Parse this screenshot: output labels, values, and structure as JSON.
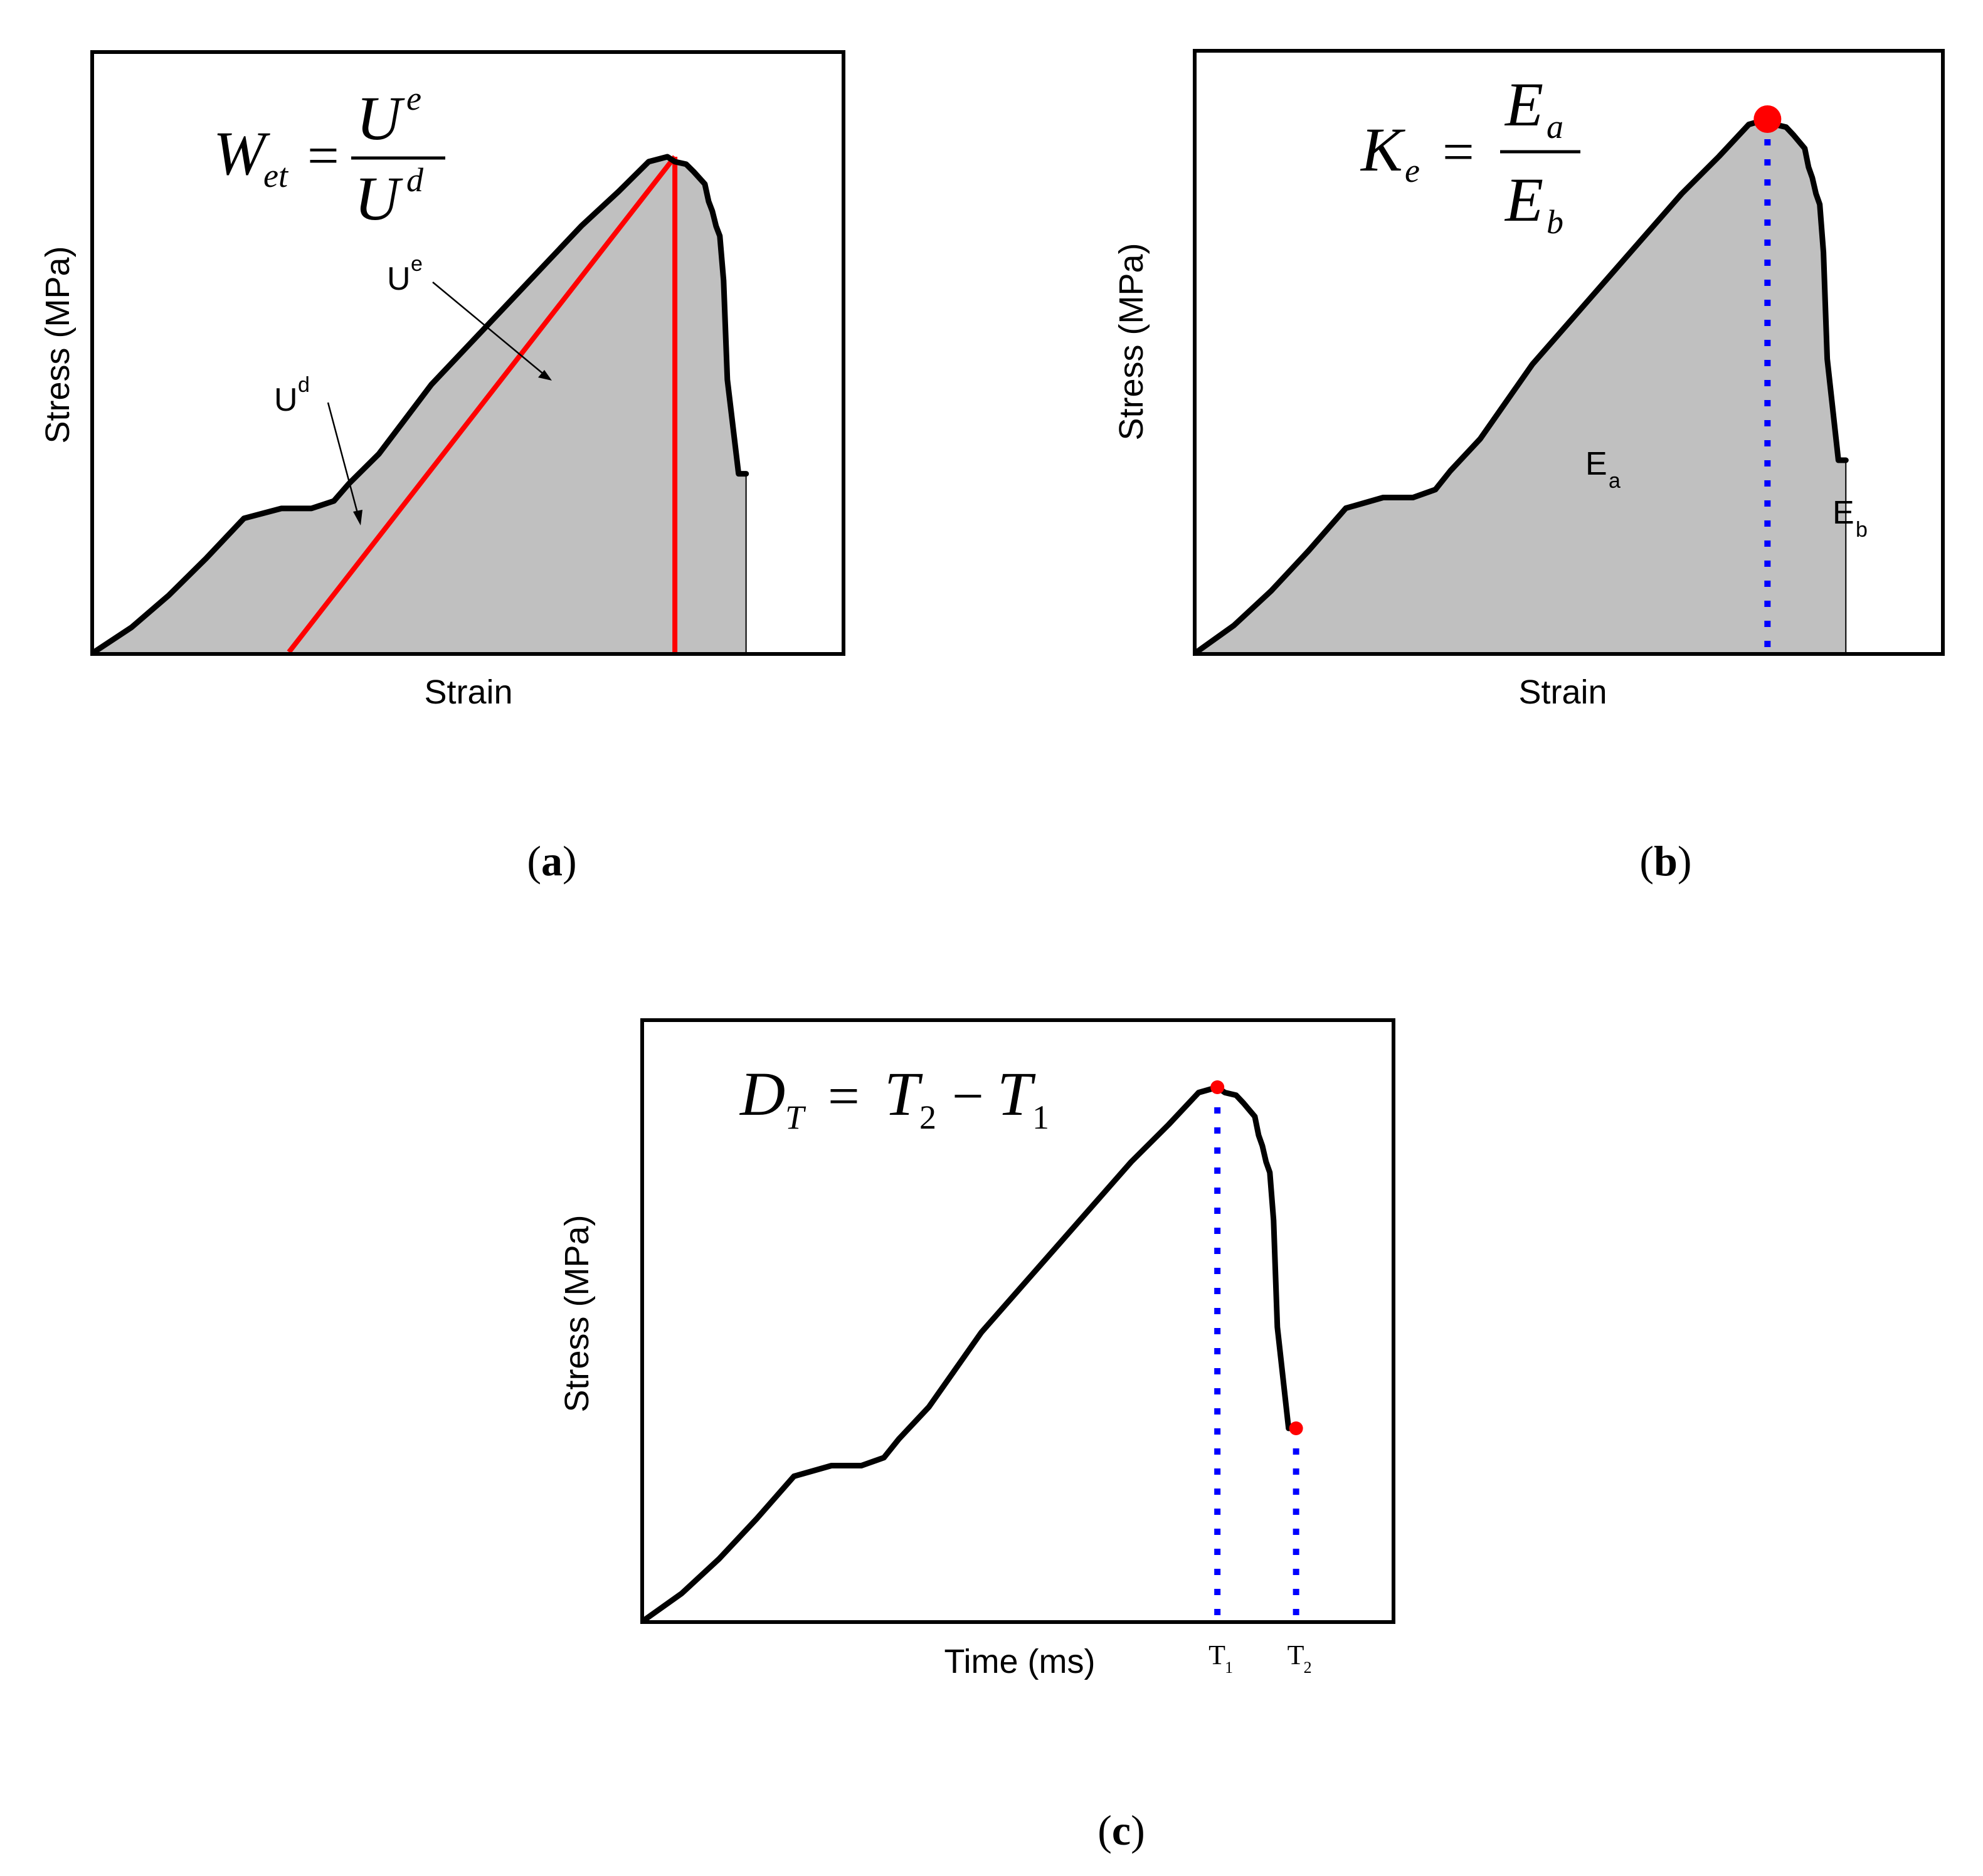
{
  "panels": {
    "a": {
      "caption_paren_open": "(",
      "caption_letter": "a",
      "caption_paren_close": ")",
      "xlabel": "Strain",
      "ylabel": "Stress (MPa)",
      "formula": {
        "lhs": "W",
        "lhs_sub": "et",
        "eq": "=",
        "num": "U",
        "num_sup": "e",
        "den": "U",
        "den_sup": "d"
      },
      "annotations": {
        "ue": "U",
        "ue_sup": "e",
        "ud": "U",
        "ud_sup": "d"
      }
    },
    "b": {
      "caption_paren_open": "(",
      "caption_letter": "b",
      "caption_paren_close": ")",
      "xlabel": "Strain",
      "ylabel": "Stress (MPa)",
      "formula": {
        "lhs": "K",
        "lhs_sub": "e",
        "eq": "=",
        "num": "E",
        "num_sub": "a",
        "den": "E",
        "den_sub": "b"
      },
      "annotations": {
        "ea": "E",
        "ea_sub": "a",
        "eb": "E",
        "eb_sub": "b"
      }
    },
    "c": {
      "caption_paren_open": "(",
      "caption_letter": "c",
      "caption_paren_close": ")",
      "xlabel": "Time (ms)",
      "ylabel": "Stress (MPa)",
      "formula": {
        "lhs": "D",
        "lhs_sub": "T",
        "eq": "=",
        "t2": "T",
        "t2_sub": "2",
        "minus": "−",
        "t1": "T",
        "t1_sub": "1"
      },
      "ticks": {
        "t1": "T",
        "t1_sub": "1",
        "t2": "T",
        "t2_sub": "2"
      }
    }
  },
  "colors": {
    "fill": "#c0c0c0",
    "curve": "#000000",
    "red": "#ff0000",
    "blue": "#0000ff"
  },
  "chart_data": [
    {
      "type": "area",
      "panel": "a",
      "title": "",
      "xlabel": "Strain",
      "ylabel": "Stress (MPa)",
      "xlim": [
        0,
        1
      ],
      "ylim": [
        0,
        1
      ],
      "grid": false,
      "series": [
        {
          "name": "stress-strain",
          "x": [
            0,
            0.05,
            0.1,
            0.15,
            0.2,
            0.25,
            0.29,
            0.32,
            0.34,
            0.36,
            0.38,
            0.41,
            0.45,
            0.5,
            0.55,
            0.6,
            0.65,
            0.7,
            0.74,
            0.765,
            0.775,
            0.79,
            0.8,
            0.815,
            0.82,
            0.825,
            0.83,
            0.835,
            0.84,
            0.845,
            0.86,
            0.87
          ],
          "y": [
            0,
            0.05,
            0.115,
            0.19,
            0.27,
            0.29,
            0.29,
            0.305,
            0.34,
            0.37,
            0.4,
            0.46,
            0.54,
            0.62,
            0.7,
            0.78,
            0.86,
            0.93,
            0.99,
            1.0,
            0.99,
            0.985,
            0.97,
            0.945,
            0.91,
            0.89,
            0.86,
            0.84,
            0.75,
            0.55,
            0.36,
            0.36
          ]
        }
      ],
      "lines": [
        {
          "name": "unloading-line",
          "x": [
            0.26,
            0.775
          ],
          "y": [
            0,
            1.0
          ]
        },
        {
          "name": "peak-vertical",
          "x": [
            0.775,
            0.775
          ],
          "y": [
            0,
            1.0
          ]
        }
      ]
    },
    {
      "type": "area",
      "panel": "b",
      "title": "",
      "xlabel": "Strain",
      "ylabel": "Stress (MPa)",
      "xlim": [
        0,
        1
      ],
      "ylim": [
        0,
        1
      ],
      "grid": false,
      "series": [
        {
          "name": "stress-strain",
          "x": [
            0,
            0.05,
            0.1,
            0.15,
            0.2,
            0.25,
            0.29,
            0.32,
            0.34,
            0.36,
            0.38,
            0.41,
            0.45,
            0.5,
            0.55,
            0.6,
            0.65,
            0.7,
            0.74,
            0.765,
            0.775,
            0.79,
            0.8,
            0.815,
            0.82,
            0.825,
            0.83,
            0.835,
            0.84,
            0.845,
            0.86,
            0.87
          ],
          "y": [
            0,
            0.05,
            0.115,
            0.19,
            0.27,
            0.29,
            0.29,
            0.305,
            0.34,
            0.37,
            0.4,
            0.46,
            0.54,
            0.62,
            0.7,
            0.78,
            0.86,
            0.93,
            0.99,
            1.0,
            0.99,
            0.985,
            0.97,
            0.945,
            0.91,
            0.89,
            0.86,
            0.84,
            0.75,
            0.55,
            0.36,
            0.36
          ]
        }
      ],
      "peak": {
        "x": 0.765,
        "y": 1.0
      },
      "divider_x": 0.765
    },
    {
      "type": "line",
      "panel": "c",
      "title": "",
      "xlabel": "Time (ms)",
      "ylabel": "Stress (MPa)",
      "xlim": [
        0,
        1
      ],
      "ylim": [
        0,
        1
      ],
      "grid": false,
      "series": [
        {
          "name": "stress-time",
          "x": [
            0,
            0.05,
            0.1,
            0.15,
            0.2,
            0.25,
            0.29,
            0.32,
            0.34,
            0.36,
            0.38,
            0.41,
            0.45,
            0.5,
            0.55,
            0.6,
            0.65,
            0.7,
            0.74,
            0.765,
            0.775,
            0.79,
            0.8,
            0.815,
            0.82,
            0.825,
            0.83,
            0.835,
            0.84,
            0.845,
            0.86,
            0.87
          ],
          "y": [
            0,
            0.05,
            0.115,
            0.19,
            0.27,
            0.29,
            0.29,
            0.305,
            0.34,
            0.37,
            0.4,
            0.46,
            0.54,
            0.62,
            0.7,
            0.78,
            0.86,
            0.93,
            0.99,
            1.0,
            0.99,
            0.985,
            0.97,
            0.945,
            0.91,
            0.89,
            0.86,
            0.84,
            0.75,
            0.55,
            0.36,
            0.36
          ]
        }
      ],
      "markers": [
        {
          "name": "T1",
          "x": 0.8,
          "y": 1.0
        },
        {
          "name": "T2",
          "x": 0.91,
          "y": 0.36
        }
      ]
    }
  ]
}
